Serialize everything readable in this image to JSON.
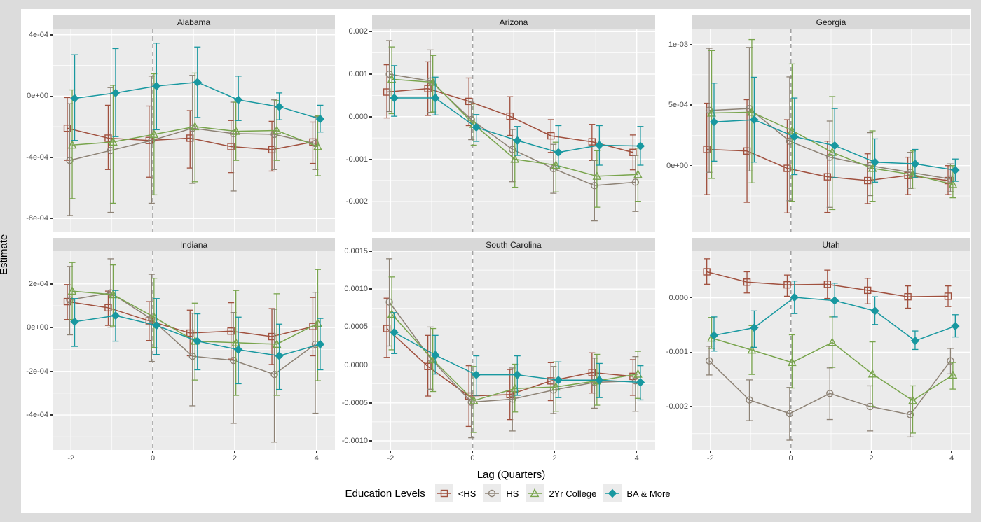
{
  "chart_data": {
    "type": "line",
    "title": "",
    "xlabel": "Lag (Quarters)",
    "ylabel": "Estimate",
    "legend_title": "Education Levels",
    "legend_position": "bottom",
    "grid": true,
    "x": [
      -2,
      -1,
      0,
      1,
      2,
      3,
      4
    ],
    "xticks": [
      -2,
      0,
      2,
      4
    ],
    "xminor": [
      -1,
      1,
      3
    ],
    "xlim": [
      -2.45,
      4.45
    ],
    "vline_x": 0,
    "dodge": [
      -0.09,
      -0.03,
      0.03,
      0.09
    ],
    "series_meta": [
      {
        "name": "<HS",
        "color": "#A0503E",
        "marker": "square-open"
      },
      {
        "name": "HS",
        "color": "#8D8275",
        "marker": "circle-open"
      },
      {
        "name": "2Yr College",
        "color": "#78A44C",
        "marker": "triangle-open"
      },
      {
        "name": "BA & More",
        "color": "#1898A0",
        "marker": "diamond-filled"
      }
    ],
    "facets": [
      {
        "title": "Alabama",
        "ylim": [
          -0.00089,
          0.00044
        ],
        "yticks": [
          {
            "v": 0.0004,
            "label": "4e-04"
          },
          {
            "v": 0,
            "label": "0e+00"
          },
          {
            "v": -0.0004,
            "label": "-4e-04"
          },
          {
            "v": -0.0008,
            "label": "-8e-04"
          }
        ],
        "series": [
          {
            "name": "<HS",
            "y": [
              -0.00021,
              -0.000275,
              -0.00029,
              -0.000275,
              -0.00033,
              -0.00035,
              -0.0003
            ],
            "lo": [
              -0.00042,
              -0.00048,
              -0.00053,
              -0.00047,
              -0.0005,
              -0.00049,
              -0.00044
            ],
            "hi": [
              -1e-05,
              -6e-05,
              -6.5e-05,
              -9.5e-05,
              -0.00016,
              -0.000165,
              -0.00017
            ]
          },
          {
            "name": "HS",
            "y": [
              -0.00042,
              -0.000355,
              -0.00029,
              -0.00021,
              -0.000245,
              -0.00025,
              -0.00031
            ],
            "lo": [
              -0.00078,
              -0.00076,
              -0.0007,
              -0.00057,
              -0.00062,
              -0.00048,
              -0.00048
            ],
            "hi": [
              -5e-05,
              5.5e-05,
              0.00013,
              0.000135,
              -4e-05,
              -2.5e-05,
              -0.000135
            ]
          },
          {
            "name": "2Yr College",
            "y": [
              -0.00032,
              -0.0003,
              -0.00025,
              -0.0002,
              -0.00023,
              -0.000225,
              -0.00033
            ],
            "lo": [
              -0.00067,
              -0.0007,
              -0.000645,
              -0.00056,
              -0.00042,
              -0.00042,
              -0.00052
            ],
            "hi": [
              4e-05,
              7e-05,
              0.000145,
              0.00015,
              -4e-05,
              -3e-05,
              -0.00013
            ]
          },
          {
            "name": "BA & More",
            "y": [
              -1.5e-05,
              2e-05,
              6.5e-05,
              9e-05,
              -2.5e-05,
              -7e-05,
              -0.00015
            ],
            "lo": [
              -0.00029,
              -0.000265,
              -0.00022,
              -0.00014,
              -0.00016,
              -0.000155,
              -0.000235
            ],
            "hi": [
              0.00027,
              0.00031,
              0.000345,
              0.00032,
              0.00013,
              2e-05,
              -6e-05
            ]
          }
        ]
      },
      {
        "title": "Arizona",
        "ylim": [
          -0.00272,
          0.00207
        ],
        "yticks": [
          {
            "v": 0.002,
            "label": "0.002"
          },
          {
            "v": 0.001,
            "label": "0.001"
          },
          {
            "v": 0,
            "label": "0.000"
          },
          {
            "v": -0.001,
            "label": "-0.001"
          },
          {
            "v": -0.002,
            "label": "-0.002"
          }
        ],
        "series": [
          {
            "name": "<HS",
            "y": [
              0.00058,
              0.00066,
              0.00036,
              1e-05,
              -0.00045,
              -0.00059,
              -0.00084
            ],
            "lo": [
              -3e-05,
              3e-05,
              -0.00021,
              -0.00044,
              -0.00084,
              -0.00103,
              -0.00125
            ],
            "hi": [
              0.00122,
              0.00129,
              0.00091,
              0.00047,
              -7e-05,
              -0.00018,
              -0.00043
            ]
          },
          {
            "name": "HS",
            "y": [
              0.001,
              0.00084,
              -7e-05,
              -0.00077,
              -0.00122,
              -0.00162,
              -0.00154
            ],
            "lo": [
              0.00012,
              0.0001,
              -0.00054,
              -0.00153,
              -0.0018,
              -0.00245,
              -0.00223
            ],
            "hi": [
              0.00179,
              0.00157,
              0.00034,
              -0.0003,
              -0.00065,
              -0.00103,
              -0.00091
            ]
          },
          {
            "name": "2Yr College",
            "y": [
              0.00088,
              0.00081,
              -0.00018,
              -0.001,
              -0.00114,
              -0.0014,
              -0.00136
            ],
            "lo": [
              7e-05,
              0.00011,
              -0.00067,
              -0.00166,
              -0.00177,
              -0.00213,
              -0.00199
            ],
            "hi": [
              0.00164,
              0.00144,
              0.0003,
              -0.00054,
              -0.0006,
              -0.0008,
              -0.00074
            ]
          },
          {
            "name": "BA & More",
            "y": [
              0.00044,
              0.00044,
              -0.00025,
              -0.00056,
              -0.00084,
              -0.00067,
              -0.00069
            ],
            "lo": [
              1e-05,
              4e-05,
              -0.00058,
              -0.00091,
              -0.00118,
              -0.00114,
              -0.00114
            ],
            "hi": [
              0.0012,
              0.00093,
              5e-05,
              -0.00023,
              -0.00021,
              -0.00021,
              -0.00023
            ]
          }
        ]
      },
      {
        "title": "Georgia",
        "ylim": [
          -0.00055,
          0.00113
        ],
        "yticks": [
          {
            "v": 0.001,
            "label": "1e-03"
          },
          {
            "v": 0.0005,
            "label": "5e-04"
          },
          {
            "v": 0,
            "label": "0e+00"
          }
        ],
        "series": [
          {
            "name": "<HS",
            "y": [
              0.000134,
              0.000121,
              -2.2e-05,
              -9.2e-05,
              -0.000123,
              -8.1e-05,
              -0.000123
            ],
            "lo": [
              -0.000239,
              -0.000302,
              -0.00039,
              -0.000386,
              -0.000313,
              -0.000239,
              -0.000239
            ],
            "hi": [
              0.000515,
              0.000544,
              0.000379,
              0.000202,
              9.8e-05,
              7e-05,
              0.0
            ]
          },
          {
            "name": "HS",
            "y": [
              0.000456,
              0.000471,
              0.000202,
              7e-05,
              0.0,
              -5.5e-05,
              -0.00011
            ],
            "lo": [
              -5.5e-05,
              -4.4e-05,
              -0.000289,
              -0.000344,
              -0.000247,
              -0.000188,
              -0.000215
            ],
            "hi": [
              0.000968,
              0.000975,
              0.000732,
              0.000368,
              0.000272,
              0.00011,
              1.5e-05
            ]
          },
          {
            "name": "2Yr College",
            "y": [
              0.000434,
              0.000441,
              0.00029,
              0.00011,
              -2.2e-05,
              -7.4e-05,
              -0.000155
            ],
            "lo": [
              -0.000105,
              -0.000142,
              -0.000294,
              -0.000362,
              -0.000294,
              -0.000184,
              -0.000265
            ],
            "hi": [
              0.000949,
              0.00104,
              0.000839,
              0.00057,
              0.000287,
              0.000121,
              0.0
            ]
          },
          {
            "name": "BA & More",
            "y": [
              0.000361,
              0.000379,
              0.000239,
              0.000166,
              2.9e-05,
              1.5e-05,
              -3.7e-05
            ],
            "lo": [
              3.7e-05,
              2.9e-05,
              -7.4e-05,
              -9.9e-05,
              -0.000136,
              -9.9e-05,
              -0.000129
            ],
            "hi": [
              0.000681,
              0.000729,
              0.000558,
              0.000471,
              0.000221,
              0.000134,
              5.5e-05
            ]
          }
        ]
      },
      {
        "title": "Indiana",
        "ylim": [
          -0.00056,
          0.00035
        ],
        "yticks": [
          {
            "v": 0.0002,
            "label": "2e-04"
          },
          {
            "v": 0,
            "label": "0e+00"
          },
          {
            "v": -0.0002,
            "label": "-2e-04"
          },
          {
            "v": -0.0004,
            "label": "-4e-04"
          }
        ],
        "series": [
          {
            "name": "<HS",
            "y": [
              0.000119,
              9.1e-05,
              3.1e-05,
              -2.5e-05,
              -1.6e-05,
              -4.1e-05,
              5e-06
            ],
            "lo": [
              3.7e-05,
              1e-05,
              -5.9e-05,
              -0.000129,
              -0.000144,
              -0.000169,
              -0.000129
            ],
            "hi": [
              0.000197,
              0.000167,
              0.000119,
              8e-05,
              0.000114,
              8.7e-05,
              0.000138
            ]
          },
          {
            "name": "HS",
            "y": [
              0.000127,
              0.000159,
              3.9e-05,
              -0.000131,
              -0.00015,
              -0.000214,
              -7.6e-05
            ],
            "lo": [
              -3.3e-05,
              2e-06,
              -0.000155,
              -0.000358,
              -0.000438,
              -0.000524,
              -0.000392
            ],
            "hi": [
              0.00028,
              0.000315,
              0.000244,
              6.6e-05,
              6.9e-05,
              8.4e-05,
              0.000162
            ]
          },
          {
            "name": "2Yr College",
            "y": [
              0.000167,
              0.000151,
              4.8e-05,
              -6.2e-05,
              -6.9e-05,
              -7.6e-05,
              2e-05
            ],
            "lo": [
              3.7e-05,
              7e-06,
              -9.1e-05,
              -0.00024,
              -0.00031,
              -0.00031,
              -0.000243
            ],
            "hi": [
              0.000298,
              0.000287,
              0.000226,
              0.000112,
              0.00017,
              0.000155,
              0.000266
            ]
          },
          {
            "name": "BA & More",
            "y": [
              2.7e-05,
              5.5e-05,
              1e-05,
              -6.2e-05,
              -0.000101,
              -0.000129,
              -7.6e-05
            ],
            "lo": [
              -8.6e-05,
              -6.2e-05,
              -0.000123,
              -0.000193,
              -0.000257,
              -0.000283,
              -0.000193
            ],
            "hi": [
              0.000133,
              0.00017,
              0.000133,
              6.3e-05,
              4.8e-05,
              1.6e-05,
              4.2e-05
            ]
          }
        ]
      },
      {
        "title": "South Carolina",
        "ylim": [
          -0.00112,
          0.0015
        ],
        "yticks": [
          {
            "v": 0.0015,
            "label": "0.0015"
          },
          {
            "v": 0.001,
            "label": "0.0010"
          },
          {
            "v": 0.0005,
            "label": "0.0005"
          },
          {
            "v": 0,
            "label": "0.0000"
          },
          {
            "v": -0.0005,
            "label": "-0.0005"
          },
          {
            "v": -0.001,
            "label": "-0.0010"
          }
        ],
        "series": [
          {
            "name": "<HS",
            "y": [
              0.00048,
              -2e-05,
              -0.00041,
              -0.00039,
              -0.00021,
              -0.0001,
              -0.00015
            ],
            "lo": [
              0.0001,
              -0.00041,
              -0.00081,
              -0.00072,
              -0.00047,
              -0.00037,
              -0.0004
            ],
            "hi": [
              0.00088,
              0.00039,
              -1e-05,
              -6e-05,
              3e-05,
              0.00016,
              7e-05
            ]
          },
          {
            "name": "HS",
            "y": [
              0.00083,
              9e-05,
              -0.00049,
              -0.00045,
              -0.00033,
              -0.00023,
              -0.00021
            ],
            "lo": [
              0.00025,
              -0.00032,
              -0.00096,
              -0.00087,
              -0.00064,
              -0.00057,
              -0.00061
            ],
            "hi": [
              0.0014,
              0.0005,
              0.0,
              -4e-05,
              -2e-05,
              9e-05,
              0.00011
            ]
          },
          {
            "name": "2Yr College",
            "y": [
              0.00067,
              7e-05,
              -0.00047,
              -0.00031,
              -0.00029,
              -0.00021,
              -0.00012
            ],
            "lo": [
              0.0002,
              -0.00035,
              -0.00089,
              -0.00062,
              -0.00061,
              -0.00053,
              -0.00044
            ],
            "hi": [
              0.00116,
              0.00048,
              -2e-05,
              1e-05,
              4e-05,
              0.00014,
              0.00018
            ]
          },
          {
            "name": "BA & More",
            "y": [
              0.00043,
              0.00013,
              -0.00013,
              -0.00013,
              -0.0002,
              -0.0002,
              -0.00023
            ],
            "lo": [
              0.00015,
              -0.00012,
              -0.0004,
              -0.0004,
              -0.00043,
              -0.00043,
              -0.00046
            ],
            "hi": [
              0.00069,
              0.00039,
              0.00012,
              0.00012,
              4e-05,
              2e-05,
              -1e-05
            ]
          }
        ]
      },
      {
        "title": "Utah",
        "ylim": [
          -0.0028,
          0.00086
        ],
        "yticks": [
          {
            "v": 0,
            "label": "0.000"
          },
          {
            "v": -0.001,
            "label": "-0.001"
          },
          {
            "v": -0.002,
            "label": "-0.002"
          }
        ],
        "series": [
          {
            "name": "<HS",
            "y": [
              0.00048,
              0.00029,
              0.00024,
              0.00025,
              0.00014,
              2e-05,
              3e-05
            ],
            "lo": [
              0.00025,
              9e-05,
              3e-05,
              -1e-05,
              -0.00011,
              -0.00019,
              -0.00016
            ],
            "hi": [
              0.00072,
              0.00048,
              0.00042,
              0.00051,
              0.00036,
              0.00022,
              0.00022
            ]
          },
          {
            "name": "HS",
            "y": [
              -0.00116,
              -0.00188,
              -0.00213,
              -0.00176,
              -0.002,
              -0.00215,
              -0.00116
            ],
            "lo": [
              -0.00142,
              -0.00226,
              -0.00262,
              -0.00224,
              -0.00245,
              -0.00256,
              -0.0014
            ],
            "hi": [
              -0.00089,
              -0.00151,
              -0.00165,
              -0.00129,
              -0.00162,
              -0.00183,
              -0.00093
            ]
          },
          {
            "name": "2Yr College",
            "y": [
              -0.00074,
              -0.00096,
              -0.00119,
              -0.00082,
              -0.0014,
              -0.00189,
              -0.00142
            ],
            "lo": [
              -0.00093,
              -0.00141,
              -0.00166,
              -0.00128,
              -0.002,
              -0.00249,
              -0.00168
            ],
            "hi": [
              -0.00036,
              -0.00051,
              -0.00068,
              -0.00035,
              -0.00081,
              -0.00162,
              -0.00119
            ]
          },
          {
            "name": "BA & More",
            "y": [
              -0.00069,
              -0.00055,
              1e-05,
              -5e-05,
              -0.00024,
              -0.00079,
              -0.00052
            ],
            "lo": [
              -0.00098,
              -0.00091,
              -0.00029,
              -0.00035,
              -0.00049,
              -0.00095,
              -0.00072
            ],
            "hi": [
              -0.00035,
              -0.00024,
              0.00031,
              0.00027,
              2e-05,
              -0.00061,
              -0.00031
            ]
          }
        ]
      }
    ],
    "style": {
      "outer_bg": "#dcdcdc",
      "figure_bg": "#ffffff",
      "panel_bg": "#ebebeb",
      "strip_bg": "#d8d8d8",
      "grid_major": "#ffffff",
      "grid_minor": "#f5f5f5",
      "dashed_line": "#a3a3a3",
      "tick_mark": "#333333",
      "tick_text": "#4d4d4d"
    }
  }
}
